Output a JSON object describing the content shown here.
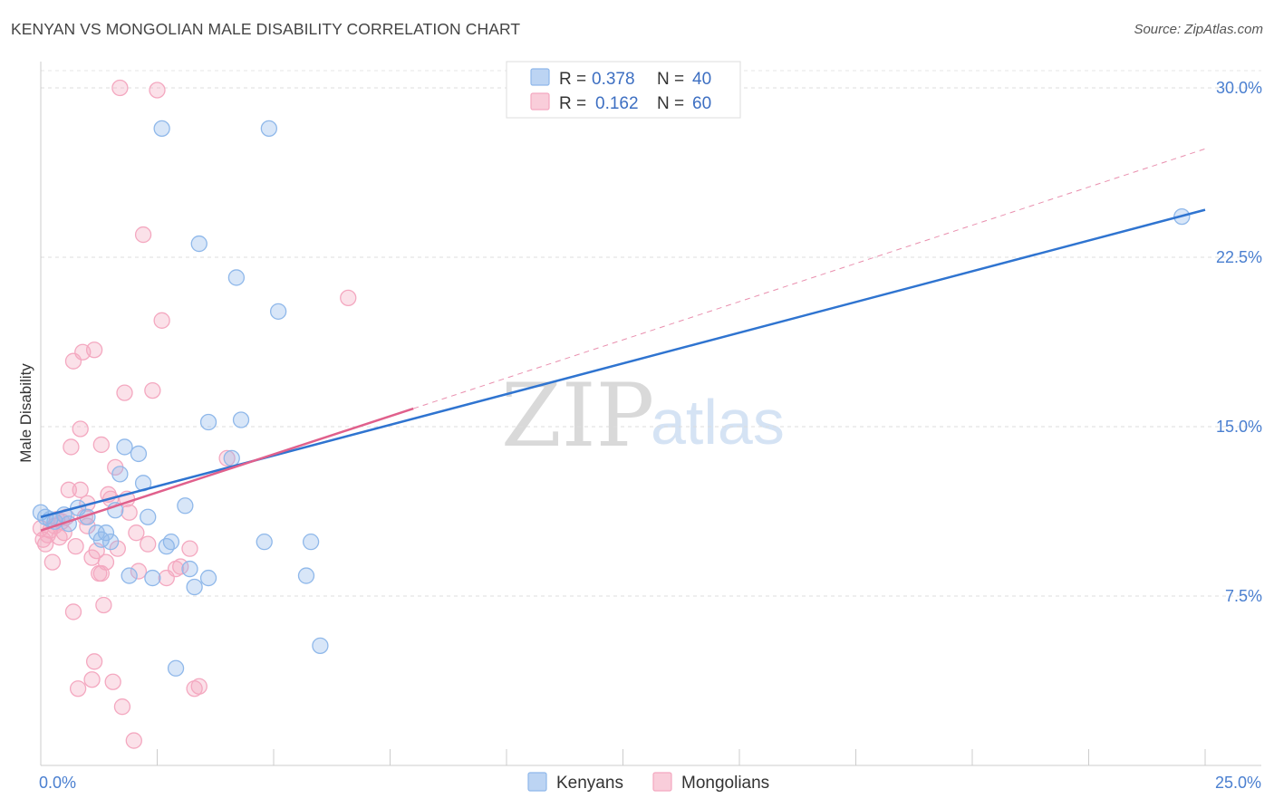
{
  "title": "KENYAN VS MONGOLIAN MALE DISABILITY CORRELATION CHART",
  "source": "Source: ZipAtlas.com",
  "chart_data": {
    "type": "scatter",
    "title": "KENYAN VS MONGOLIAN MALE DISABILITY CORRELATION CHART",
    "xlabel": "",
    "ylabel": "Male Disability",
    "xlim": [
      0,
      25
    ],
    "ylim": [
      0,
      30
    ],
    "x_tick_labels": [
      "0.0%",
      "25.0%"
    ],
    "y_ticks": [
      7.5,
      15,
      22.5,
      30
    ],
    "y_tick_labels": [
      "7.5%",
      "15.0%",
      "22.5%",
      "30.0%"
    ],
    "grid": true,
    "watermark": {
      "zip": "ZIP",
      "atlas": "atlas"
    },
    "legend": {
      "entries": [
        {
          "r_label": "R =",
          "r_value": "0.378",
          "n_label": "N =",
          "n_value": "40"
        },
        {
          "r_label": "R =",
          "r_value": "0.162",
          "n_label": "N =",
          "n_value": "60"
        }
      ]
    },
    "series": [
      {
        "name": "Kenyans",
        "color": "#8fb8ea",
        "line_color": "#2f74d0",
        "r": 0.378,
        "n": 40,
        "trend": {
          "x": [
            0,
            25
          ],
          "y": [
            11.0,
            24.6
          ]
        },
        "points": [
          [
            0.0,
            11.2
          ],
          [
            0.1,
            11.0
          ],
          [
            0.3,
            10.8
          ],
          [
            0.5,
            11.1
          ],
          [
            0.6,
            10.7
          ],
          [
            0.8,
            11.4
          ],
          [
            1.0,
            11.0
          ],
          [
            1.2,
            10.3
          ],
          [
            1.3,
            10.0
          ],
          [
            1.4,
            10.3
          ],
          [
            1.6,
            11.3
          ],
          [
            1.7,
            12.9
          ],
          [
            1.8,
            14.1
          ],
          [
            1.9,
            8.4
          ],
          [
            2.1,
            13.8
          ],
          [
            2.2,
            12.5
          ],
          [
            2.3,
            11.0
          ],
          [
            2.4,
            8.3
          ],
          [
            2.6,
            28.2
          ],
          [
            2.7,
            9.7
          ],
          [
            2.8,
            9.9
          ],
          [
            2.9,
            4.3
          ],
          [
            3.1,
            11.5
          ],
          [
            3.2,
            8.7
          ],
          [
            3.3,
            7.9
          ],
          [
            3.4,
            23.1
          ],
          [
            3.6,
            8.3
          ],
          [
            3.6,
            15.2
          ],
          [
            4.1,
            13.6
          ],
          [
            4.2,
            21.6
          ],
          [
            4.3,
            15.3
          ],
          [
            4.8,
            9.9
          ],
          [
            4.9,
            28.2
          ],
          [
            5.1,
            20.1
          ],
          [
            5.7,
            8.4
          ],
          [
            5.8,
            9.9
          ],
          [
            6.0,
            5.3
          ],
          [
            24.5,
            24.3
          ],
          [
            0.2,
            10.9
          ],
          [
            1.5,
            9.9
          ]
        ]
      },
      {
        "name": "Mongolians",
        "color": "#f4a8c0",
        "line_color": "#e0608c",
        "r": 0.162,
        "n": 60,
        "trend": {
          "x": [
            0,
            8
          ],
          "y": [
            10.4,
            15.8
          ]
        },
        "trend_extension": {
          "x": [
            8,
            25
          ],
          "y": [
            15.8,
            27.3
          ]
        },
        "points": [
          [
            0.0,
            10.5
          ],
          [
            0.05,
            10.0
          ],
          [
            0.1,
            9.8
          ],
          [
            0.15,
            10.2
          ],
          [
            0.2,
            10.4
          ],
          [
            0.25,
            9.0
          ],
          [
            0.3,
            10.6
          ],
          [
            0.35,
            10.9
          ],
          [
            0.4,
            10.1
          ],
          [
            0.45,
            10.8
          ],
          [
            0.5,
            10.3
          ],
          [
            0.55,
            11.0
          ],
          [
            0.6,
            12.2
          ],
          [
            0.65,
            14.1
          ],
          [
            0.7,
            6.8
          ],
          [
            0.7,
            17.9
          ],
          [
            0.75,
            9.7
          ],
          [
            0.8,
            3.4
          ],
          [
            0.85,
            14.9
          ],
          [
            0.85,
            12.2
          ],
          [
            0.9,
            18.3
          ],
          [
            0.95,
            11.0
          ],
          [
            1.0,
            10.6
          ],
          [
            1.0,
            11.6
          ],
          [
            1.1,
            9.2
          ],
          [
            1.1,
            3.8
          ],
          [
            1.15,
            18.4
          ],
          [
            1.15,
            4.6
          ],
          [
            1.2,
            9.5
          ],
          [
            1.25,
            8.5
          ],
          [
            1.3,
            8.5
          ],
          [
            1.3,
            14.2
          ],
          [
            1.35,
            7.1
          ],
          [
            1.4,
            9.0
          ],
          [
            1.45,
            12.0
          ],
          [
            1.5,
            11.8
          ],
          [
            1.55,
            3.7
          ],
          [
            1.6,
            13.2
          ],
          [
            1.65,
            9.6
          ],
          [
            1.7,
            30.0
          ],
          [
            1.75,
            2.6
          ],
          [
            1.8,
            16.5
          ],
          [
            1.85,
            11.8
          ],
          [
            1.9,
            11.2
          ],
          [
            2.0,
            1.1
          ],
          [
            2.05,
            10.3
          ],
          [
            2.1,
            8.6
          ],
          [
            2.2,
            23.5
          ],
          [
            2.3,
            9.8
          ],
          [
            2.4,
            16.6
          ],
          [
            2.5,
            29.9
          ],
          [
            2.6,
            19.7
          ],
          [
            2.7,
            8.3
          ],
          [
            2.9,
            8.7
          ],
          [
            3.0,
            8.8
          ],
          [
            3.2,
            9.6
          ],
          [
            3.3,
            3.4
          ],
          [
            3.4,
            3.5
          ],
          [
            4.0,
            13.6
          ],
          [
            6.6,
            20.7
          ]
        ]
      }
    ]
  }
}
